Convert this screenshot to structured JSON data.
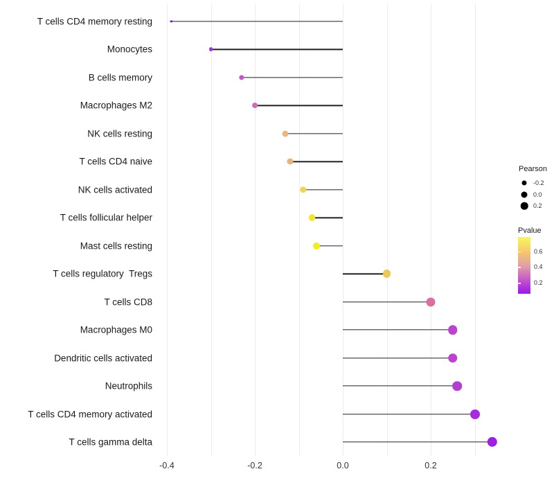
{
  "chart_data": {
    "type": "scatter",
    "variant": "lollipop",
    "title": "",
    "xlabel": "",
    "ylabel": "",
    "categories": [
      "T cells CD4 memory resting",
      "Monocytes",
      "B cells memory",
      "Macrophages M2",
      "NK cells resting",
      "T cells CD4 naive",
      "NK cells activated",
      "T cells follicular helper",
      "Mast cells resting",
      "T cells regulatory  Tregs",
      "T cells CD8",
      "Macrophages M0",
      "Dendritic cells activated",
      "Neutrophils",
      "T cells CD4 memory activated",
      "T cells gamma delta"
    ],
    "series": [
      {
        "name": "Pearson",
        "values": [
          -0.39,
          -0.3,
          -0.23,
          -0.2,
          -0.13,
          -0.12,
          -0.09,
          -0.07,
          -0.06,
          0.1,
          0.2,
          0.25,
          0.25,
          0.26,
          0.3,
          0.34
        ]
      }
    ],
    "pvalues_estimated_from_color": [
      0.02,
      0.08,
      0.25,
      0.32,
      0.52,
      0.52,
      0.62,
      0.7,
      0.76,
      0.6,
      0.4,
      0.2,
      0.2,
      0.17,
      0.09,
      0.05
    ],
    "point_colors": [
      "#8a22cc",
      "#a335d8",
      "#c159c4",
      "#d06bbc",
      "#eab77e",
      "#e9b27b",
      "#f2d355",
      "#f2e52e",
      "#f0ef1e",
      "#edc95c",
      "#d9709f",
      "#bb44cf",
      "#bb44cf",
      "#b43ed2",
      "#a42be0",
      "#9d20e4"
    ],
    "xlim": [
      -0.43,
      0.37
    ],
    "x_tick_labels": [
      "-0.4",
      "-0.2",
      "0.0",
      "0.2"
    ],
    "x_tick_values": [
      -0.4,
      -0.2,
      0.0,
      0.2
    ],
    "gridline_values": [
      -0.4,
      -0.3,
      -0.2,
      -0.1,
      0.0,
      0.1,
      0.2,
      0.3
    ],
    "grid": "vertical-only",
    "stem_origin": 0.0,
    "legend_position": "right",
    "legend_size": {
      "title": "Pearson",
      "entry_labels": [
        "-0.2",
        "0.0",
        "0.2"
      ],
      "entry_values": [
        -0.2,
        0.0,
        0.2
      ]
    },
    "legend_color": {
      "title": "Pvalue",
      "tick_labels": [
        "0.6",
        "0.4",
        "0.2"
      ],
      "gradient_stops": [
        "#f9f75a",
        "#f5c76e",
        "#e09da8",
        "#c050ce",
        "#9b16ea"
      ],
      "scale_high_color_meaning": "high p-value (yellow)",
      "scale_low_color_meaning": "low p-value (purple)"
    },
    "colors": {
      "stem": "#1f1f1f",
      "gridline": "#ececec",
      "axis_text": "#333333",
      "label_text": "#1a1a1a"
    }
  }
}
